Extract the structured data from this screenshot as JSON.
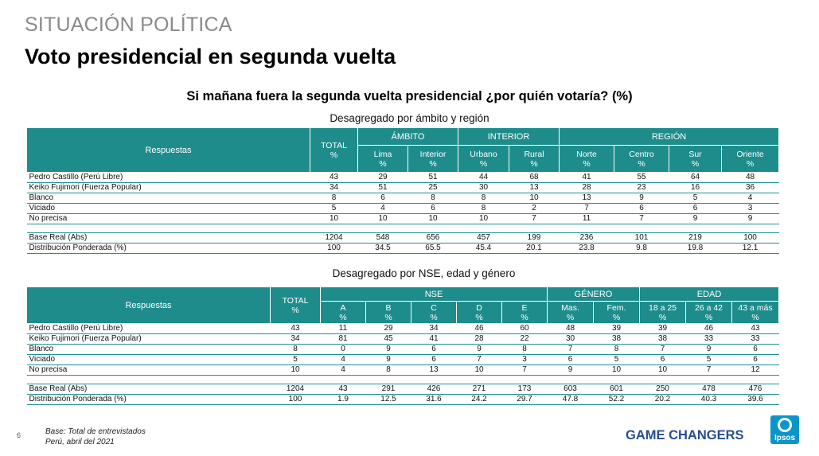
{
  "header": {
    "section": "SITUACIÓN POLÍTICA",
    "title": "Voto presidencial en segunda vuelta",
    "question": "Si mañana fuera la segunda vuelta presidencial ¿por quién votaría? (%)"
  },
  "table1": {
    "subtitle": "Desagregado por ámbito y región",
    "label_header": "Respuestas",
    "total_header": "TOTAL %",
    "groups": [
      "ÁMBITO",
      "INTERIOR",
      "REGIÓN"
    ],
    "columns": [
      "Lima %",
      "Interior %",
      "Urbano %",
      "Rural %",
      "Norte %",
      "Centro %",
      "Sur %",
      "Oriente %"
    ],
    "rows": [
      {
        "label": "Pedro Castillo (Perú Libre)",
        "values": [
          "43",
          "29",
          "51",
          "44",
          "68",
          "41",
          "55",
          "64",
          "48"
        ]
      },
      {
        "label": "Keiko Fujimori (Fuerza Popular)",
        "values": [
          "34",
          "51",
          "25",
          "30",
          "13",
          "28",
          "23",
          "16",
          "36"
        ]
      },
      {
        "label": "Blanco",
        "values": [
          "8",
          "6",
          "8",
          "8",
          "10",
          "13",
          "9",
          "5",
          "4"
        ]
      },
      {
        "label": "Viciado",
        "values": [
          "5",
          "4",
          "6",
          "8",
          "2",
          "7",
          "6",
          "6",
          "3"
        ]
      },
      {
        "label": "No precisa",
        "values": [
          "10",
          "10",
          "10",
          "10",
          "7",
          "11",
          "7",
          "9",
          "9"
        ]
      }
    ],
    "base_rows": [
      {
        "label": "Base Real (Abs)",
        "values": [
          "1204",
          "548",
          "656",
          "457",
          "199",
          "236",
          "101",
          "219",
          "100"
        ]
      },
      {
        "label": "Distribución Ponderada (%)",
        "values": [
          "100",
          "34.5",
          "65.5",
          "45.4",
          "20.1",
          "23.8",
          "9.8",
          "19.8",
          "12.1"
        ]
      }
    ]
  },
  "table2": {
    "subtitle": "Desagregado por NSE, edad y género",
    "label_header": "Respuestas",
    "total_header": "TOTAL %",
    "groups": [
      "NSE",
      "GÉNERO",
      "EDAD"
    ],
    "columns": [
      "A %",
      "B %",
      "C %",
      "D %",
      "E %",
      "Mas. %",
      "Fem. %",
      "18 a 25 %",
      "26 a 42 %",
      "43 a más %"
    ],
    "rows": [
      {
        "label": "Pedro Castillo (Perú Libre)",
        "values": [
          "43",
          "11",
          "29",
          "34",
          "46",
          "60",
          "48",
          "39",
          "39",
          "46",
          "43"
        ]
      },
      {
        "label": "Keiko Fujimori (Fuerza Popular)",
        "values": [
          "34",
          "81",
          "45",
          "41",
          "28",
          "22",
          "30",
          "38",
          "38",
          "33",
          "33"
        ]
      },
      {
        "label": "Blanco",
        "values": [
          "8",
          "0",
          "9",
          "6",
          "9",
          "8",
          "7",
          "8",
          "7",
          "9",
          "6"
        ]
      },
      {
        "label": "Viciado",
        "values": [
          "5",
          "4",
          "9",
          "6",
          "7",
          "3",
          "6",
          "5",
          "6",
          "5",
          "6"
        ]
      },
      {
        "label": "No precisa",
        "values": [
          "10",
          "4",
          "8",
          "13",
          "10",
          "7",
          "9",
          "10",
          "10",
          "7",
          "12"
        ]
      }
    ],
    "base_rows": [
      {
        "label": "Base Real (Abs)",
        "values": [
          "1204",
          "43",
          "291",
          "426",
          "271",
          "173",
          "603",
          "601",
          "250",
          "478",
          "476"
        ]
      },
      {
        "label": "Distribución Ponderada (%)",
        "values": [
          "100",
          "1.9",
          "12.5",
          "31.6",
          "24.2",
          "29.7",
          "47.8",
          "52.2",
          "20.2",
          "40.3",
          "39.6"
        ]
      }
    ]
  },
  "footer": {
    "page": "6",
    "note_line1": "Base: Total de entrevistados",
    "note_line2": "Perú, abril del 2021",
    "tagline": "GAME CHANGERS",
    "logo_text": "Ipsos",
    "colors": {
      "header_teal": "#1f8c8c",
      "tagline_blue": "#2a4d8f",
      "logo_blue": "#0a96c8"
    }
  }
}
